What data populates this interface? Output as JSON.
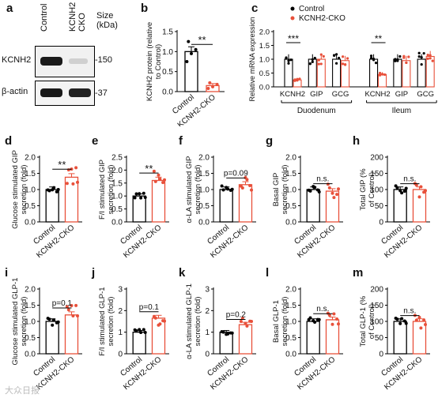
{
  "panels": {
    "a": {
      "letter": "a",
      "lanes": [
        "Control",
        "KCNH2 CKO"
      ],
      "size_label": "Size (kDa)",
      "rows": [
        {
          "name": "KCNH2",
          "size": "150"
        },
        {
          "name": "β-actin",
          "size": "37"
        }
      ]
    },
    "b": {
      "letter": "b"
    },
    "c": {
      "letter": "c",
      "groups": [
        "Duodenum",
        "Ileum"
      ]
    }
  },
  "chart_data": [
    {
      "id": "b",
      "type": "bar",
      "categories": [
        "Control",
        "KCNH2-CKO"
      ],
      "values": [
        1.0,
        0.15
      ],
      "errors": [
        0.12,
        0.05
      ],
      "points": [
        [
          0.75,
          0.95,
          1.05,
          1.25
        ],
        [
          0.08,
          0.12,
          0.18,
          0.22
        ]
      ],
      "ylabel": "KCNH2 protein (relative to Control)",
      "ylim": [
        0,
        1.5
      ],
      "yticks": [
        "0.0",
        "0.5",
        "1.0",
        "1.5"
      ],
      "annotation": "**"
    },
    {
      "id": "c",
      "type": "bar",
      "categories": [
        "KCNH2",
        "GIP",
        "GCG",
        "KCNH2",
        "GIP",
        "GCG"
      ],
      "series": [
        {
          "name": "Control",
          "values": [
            1.0,
            1.0,
            1.0,
            1.0,
            1.0,
            1.0
          ],
          "color": "#000000"
        },
        {
          "name": "KCNH2-CKO",
          "values": [
            0.25,
            1.0,
            0.95,
            0.45,
            0.95,
            1.1
          ],
          "color": "#e8503a"
        }
      ],
      "ylabel": "Relative mRNA expression",
      "ylim": [
        0,
        2.0
      ],
      "yticks": [
        "0.0",
        "0.5",
        "1.0",
        "1.5",
        "2.0"
      ],
      "annotations": [
        "***",
        "**"
      ]
    },
    {
      "id": "d",
      "type": "bar",
      "categories": [
        "Control",
        "KCNH2-CKO"
      ],
      "values": [
        1.0,
        1.38
      ],
      "ylabel": "Glucose stimulated GIP secretion (fold)",
      "ylim": [
        0,
        2.0
      ],
      "yticks": [
        "0.0",
        "0.5",
        "1.0",
        "1.5",
        "2.0"
      ],
      "annotation": "**"
    },
    {
      "id": "e",
      "type": "bar",
      "categories": [
        "Control",
        "KCNH2-CKO"
      ],
      "values": [
        1.0,
        1.6
      ],
      "ylabel": "F/I stimulated GIP secretion (fold)",
      "ylim": [
        0,
        2.5
      ],
      "yticks": [
        "0.0",
        "0.5",
        "1.0",
        "1.5",
        "2.0",
        "2.5"
      ],
      "annotation": "**"
    },
    {
      "id": "f",
      "type": "bar",
      "categories": [
        "Control",
        "KCNH2-CKO"
      ],
      "values": [
        1.0,
        1.15
      ],
      "ylabel": "α-LA stimulated GIP secretion (fold)",
      "ylim": [
        0,
        2.0
      ],
      "yticks": [
        "0.0",
        "0.5",
        "1.0",
        "1.5",
        "2.0"
      ],
      "annotation": "p=0.09"
    },
    {
      "id": "g",
      "type": "bar",
      "categories": [
        "Control",
        "KCNH2-CKO"
      ],
      "values": [
        1.0,
        0.95
      ],
      "ylabel": "Basal GIP secretion (fold)",
      "ylim": [
        0,
        2.0
      ],
      "yticks": [
        "0.0",
        "0.5",
        "1.0",
        "1.5",
        "2.0"
      ],
      "annotation": "n.s."
    },
    {
      "id": "h",
      "type": "bar",
      "categories": [
        "Control",
        "KCNH2-CKO"
      ],
      "values": [
        100,
        100
      ],
      "ylabel": "Total GIP (% of Control)",
      "ylim": [
        0,
        200
      ],
      "yticks": [
        "0",
        "50",
        "100",
        "150",
        "200"
      ],
      "annotation": "n.s."
    },
    {
      "id": "i",
      "type": "bar",
      "categories": [
        "Control",
        "KCNH2-CKO"
      ],
      "values": [
        1.0,
        1.2
      ],
      "ylabel": "Glucose stimulated GLP-1 secretion (fold)",
      "ylim": [
        0,
        2.0
      ],
      "yticks": [
        "0.0",
        "0.5",
        "1.0",
        "1.5",
        "2.0"
      ],
      "annotation": "p=0.1"
    },
    {
      "id": "j",
      "type": "bar",
      "categories": [
        "Control",
        "KCNH2-CKO"
      ],
      "values": [
        1.0,
        1.65
      ],
      "ylabel": "F/I stimulated GLP-1 secretion (fold)",
      "ylim": [
        0,
        3.0
      ],
      "yticks": [
        "0",
        "1",
        "2",
        "3"
      ],
      "annotation": "p=0.1"
    },
    {
      "id": "k",
      "type": "bar",
      "categories": [
        "Control",
        "KCNH2-CKO"
      ],
      "values": [
        1.0,
        1.35
      ],
      "ylabel": "α-LA stimulated GLP-1 secretion (fold)",
      "ylim": [
        0,
        3.0
      ],
      "yticks": [
        "0",
        "1",
        "2",
        "3"
      ],
      "annotation": "p=0.2"
    },
    {
      "id": "l",
      "type": "bar",
      "categories": [
        "Control",
        "KCNH2-CKO"
      ],
      "values": [
        1.0,
        1.05
      ],
      "ylabel": "Basal GLP-1 secretion (fold)",
      "ylim": [
        0,
        2.0
      ],
      "yticks": [
        "0.0",
        "0.5",
        "1.0",
        "1.5",
        "2.0"
      ],
      "annotation": "n.s."
    },
    {
      "id": "m",
      "type": "bar",
      "categories": [
        "Control",
        "KCNH2-CKO"
      ],
      "values": [
        100,
        100
      ],
      "ylabel": "Total GLP-1 (% of Control)",
      "ylim": [
        0,
        200
      ],
      "yticks": [
        "0",
        "50",
        "100",
        "150",
        "200"
      ],
      "annotation": "n.s."
    }
  ],
  "colors": {
    "control": "#000000",
    "cko": "#e8503a"
  },
  "watermark": "大众日报"
}
